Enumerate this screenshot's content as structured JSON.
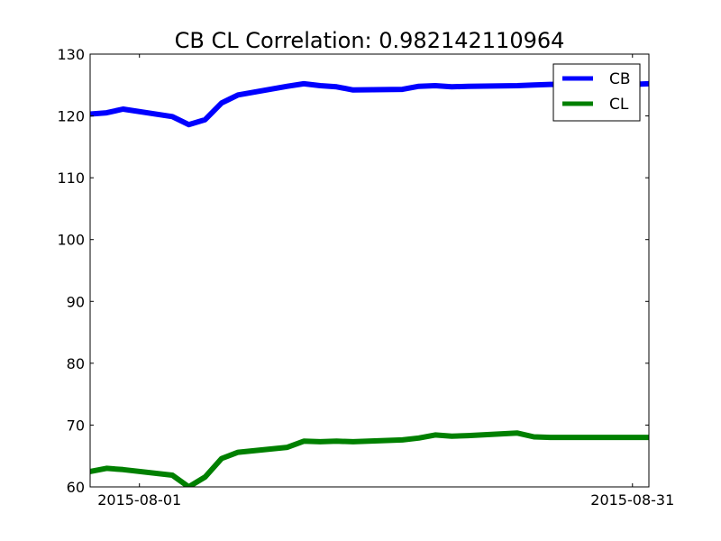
{
  "chart_data": {
    "type": "line",
    "title": "CB CL Correlation: 0.982142110964",
    "xlabel": "",
    "ylabel": "",
    "x_ticks": [
      "2015-08-01",
      "2015-08-31"
    ],
    "y_ticks": [
      "60",
      "70",
      "80",
      "90",
      "100",
      "110",
      "120",
      "130"
    ],
    "ylim": [
      60,
      130
    ],
    "xlim": [
      "2015-07-29",
      "2015-09-01"
    ],
    "grid": false,
    "legend_position": "top-right",
    "x": [
      "2015-07-29",
      "2015-07-30",
      "2015-07-31",
      "2015-08-03",
      "2015-08-04",
      "2015-08-05",
      "2015-08-06",
      "2015-08-07",
      "2015-08-10",
      "2015-08-11",
      "2015-08-12",
      "2015-08-13",
      "2015-08-14",
      "2015-08-17",
      "2015-08-18",
      "2015-08-19",
      "2015-08-20",
      "2015-08-21",
      "2015-08-24",
      "2015-08-25",
      "2015-08-26",
      "2015-08-27",
      "2015-08-28",
      "2015-08-31",
      "2015-09-01"
    ],
    "series": [
      {
        "name": "CB",
        "color": "#0000ff",
        "values": [
          120.3,
          120.5,
          121.1,
          119.9,
          118.6,
          119.4,
          122.1,
          123.4,
          124.8,
          125.2,
          124.9,
          124.7,
          124.2,
          124.3,
          124.8,
          124.9,
          124.7,
          124.8,
          124.9,
          125.0,
          125.1,
          125.1,
          125.2,
          125.1,
          125.2
        ]
      },
      {
        "name": "CL",
        "color": "#008000",
        "values": [
          62.5,
          63.0,
          62.8,
          61.9,
          60.0,
          61.6,
          64.6,
          65.6,
          66.4,
          67.4,
          67.3,
          67.4,
          67.3,
          67.6,
          67.9,
          68.4,
          68.2,
          68.3,
          68.7,
          68.1,
          68.0,
          68.0,
          68.0,
          68.0,
          68.0
        ]
      }
    ]
  }
}
